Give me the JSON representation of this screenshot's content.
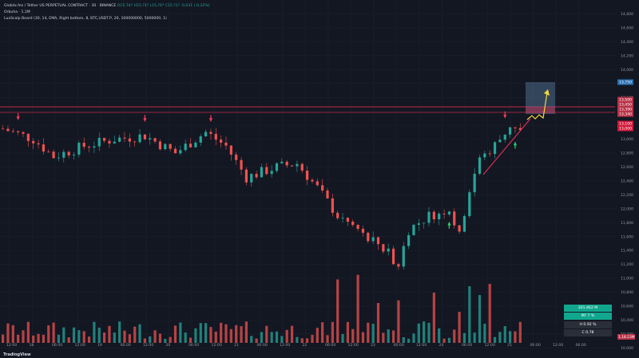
{
  "header": {
    "symbol": "Globilx.fes / Tether US PERPETUAL CONTRACT · 30 · BINANCE",
    "ohlc_text": "O15,74? H15,?3? L15,?0? C15,?1? -0,031 (-0,22%)",
    "indicator_1": "Orbuha · 1,1M",
    "indicator_2": "LuxScalp Board (30, 14, EMA, Right bottom, 8, BTC,USDT.P, 20, 100000000, 5000000, 1)"
  },
  "price_axis": {
    "ticks": [
      "14,800",
      "14,600",
      "14,400",
      "14,200",
      "14,000",
      "13,800",
      "13,600",
      "13,400",
      "13,200",
      "13,000",
      "12,800",
      "12,600",
      "12,400",
      "12,200",
      "12,000",
      "11,800",
      "11,600",
      "11,400",
      "11,200",
      "11,000",
      "10,800",
      "10,600",
      "10,400",
      "10,200",
      "10,000"
    ],
    "badges": [
      {
        "text": "13,750",
        "color": "#2a6fb0"
      },
      {
        "text": "13,500",
        "color": "#b83247"
      },
      {
        "text": "13,450",
        "color": "#b83247"
      },
      {
        "text": "13,390",
        "color": "#b83247"
      },
      {
        "text": "13,340",
        "color": "#b83247"
      },
      {
        "text": "13,100",
        "color": "#d2193c"
      },
      {
        "text": "13,000",
        "color": "#d2193c"
      }
    ],
    "vol_badge": "1,18.23M"
  },
  "time_axis": {
    "labels": [
      "12:00",
      "18",
      "06:00",
      "12:00",
      "19",
      "06:00",
      "12:00",
      "20",
      "06:00",
      "12:00",
      "21",
      "06:00",
      "12:00",
      "22",
      "06:00",
      "12:00",
      "23",
      "06:00",
      "12:00",
      "24",
      "06:00",
      "12:00",
      "25",
      "06:00",
      "12:00",
      "06:00"
    ]
  },
  "stats_panel": {
    "row1": "301.462 M",
    "row2": "M? 7 %",
    "row3": "Н 0.92 %",
    "row4": "С 0.78"
  },
  "footer": {
    "brand": "TradingView"
  },
  "colors": {
    "up": "#26a69a",
    "down": "#ef5350",
    "bg": "#131722",
    "signal_down": "#ff3b5c",
    "signal_up": "#2bd66b",
    "target_box": "#5b7fa0",
    "arrow": "#f5d63b"
  },
  "chart_data": {
    "type": "candlestick",
    "x_label": "time (30m)",
    "y_range": [
      10000,
      15000
    ],
    "levels": [
      13440,
      13330
    ],
    "signals_down_at_index": [
      3,
      28,
      41,
      99
    ],
    "signals_up_at_index": [
      88,
      101
    ],
    "approx_close_path": [
      [
        0,
        13150
      ],
      [
        6,
        13000
      ],
      [
        10,
        12750
      ],
      [
        16,
        12900
      ],
      [
        22,
        13000
      ],
      [
        28,
        13050
      ],
      [
        34,
        12800
      ],
      [
        40,
        13100
      ],
      [
        44,
        12900
      ],
      [
        48,
        12450
      ],
      [
        54,
        12600
      ],
      [
        58,
        12650
      ],
      [
        62,
        12300
      ],
      [
        66,
        11900
      ],
      [
        70,
        11700
      ],
      [
        74,
        11500
      ],
      [
        78,
        11200
      ],
      [
        80,
        11700
      ],
      [
        84,
        11900
      ],
      [
        88,
        12000
      ],
      [
        90,
        11600
      ],
      [
        92,
        12300
      ],
      [
        94,
        12700
      ],
      [
        98,
        13000
      ],
      [
        100,
        13200
      ],
      [
        102,
        13100
      ]
    ]
  }
}
